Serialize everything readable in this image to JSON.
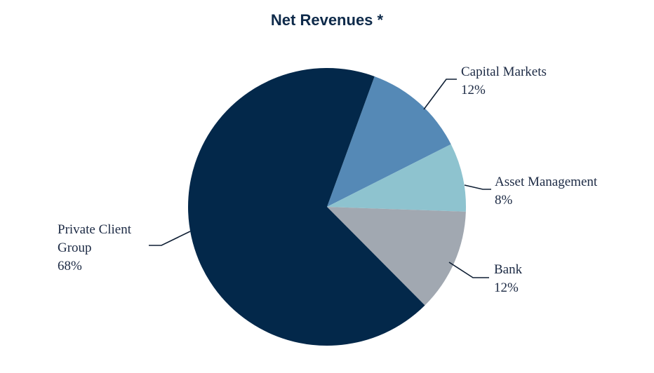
{
  "chart_data": {
    "type": "pie",
    "title": "Net Revenues *",
    "slices": [
      {
        "name": "Capital Markets",
        "name_lines": [
          "Capital Markets"
        ],
        "value": 12,
        "label": "12%",
        "color": "#5589b6"
      },
      {
        "name": "Asset Management",
        "name_lines": [
          "Asset Management"
        ],
        "value": 8,
        "label": "8%",
        "color": "#8ec3cf"
      },
      {
        "name": "Bank",
        "name_lines": [
          "Bank"
        ],
        "value": 12,
        "label": "12%",
        "color": "#a1a8b1"
      },
      {
        "name": "Private Client Group",
        "name_lines": [
          "Private Client",
          "Group"
        ],
        "value": 68,
        "label": "68%",
        "color": "#03284a"
      }
    ],
    "start_angle_deg": 20,
    "direction": "clockwise",
    "leader_line_color": "#0e1e33",
    "text_color": "#1c2a44"
  }
}
